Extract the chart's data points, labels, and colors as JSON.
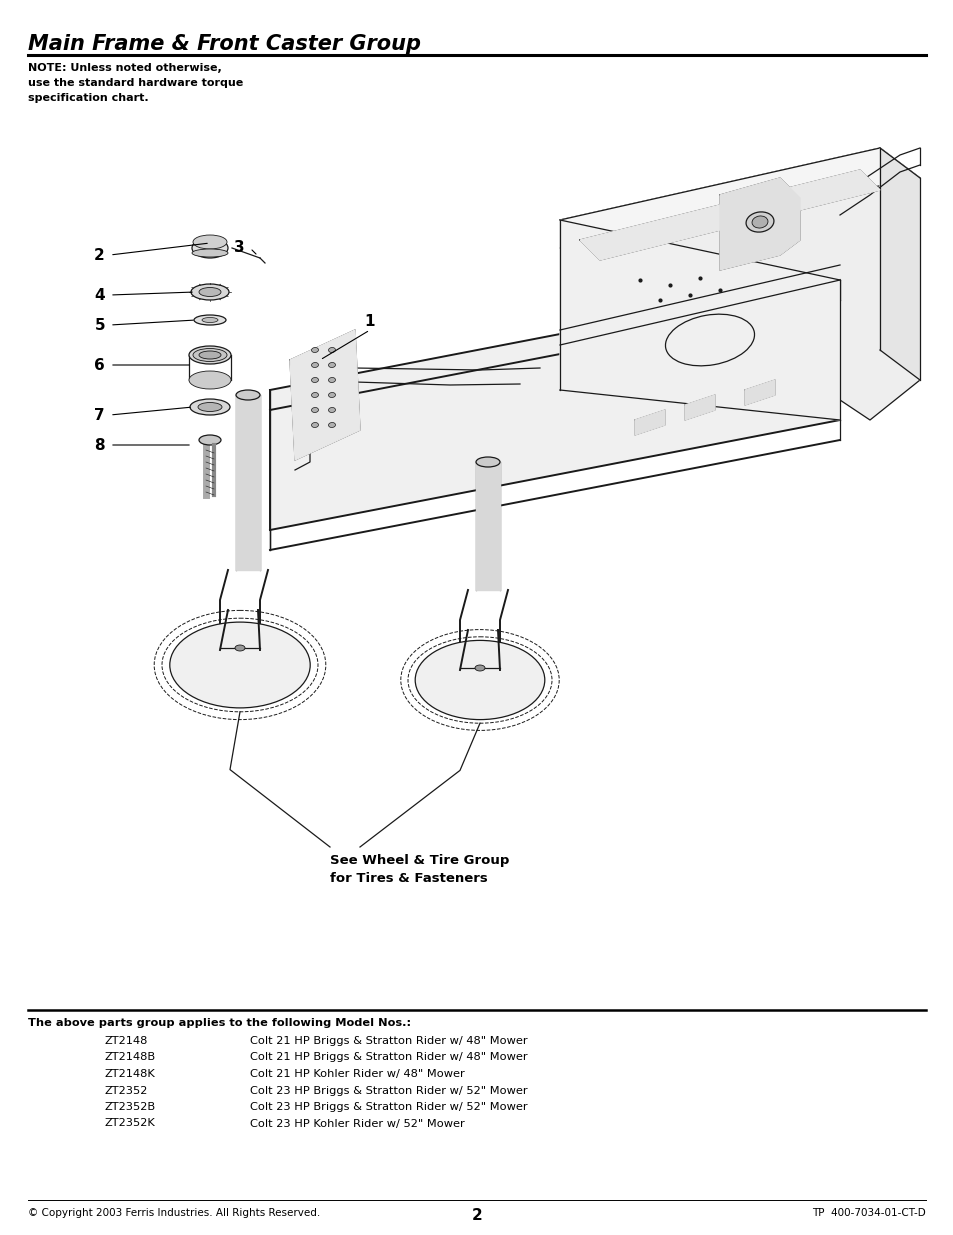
{
  "title": "Main Frame & Front Caster Group",
  "note_text": "NOTE: Unless noted otherwise,\nuse the standard hardware torque\nspecification chart.",
  "see_wheel_text": "See Wheel & Tire Group\nfor Tires & Fasteners",
  "parts_header": "The above parts group applies to the following Model Nos.:",
  "parts_table": [
    [
      "ZT2148",
      "Colt 21 HP Briggs & Stratton Rider w/ 48\" Mower"
    ],
    [
      "ZT2148B",
      "Colt 21 HP Briggs & Stratton Rider w/ 48\" Mower"
    ],
    [
      "ZT2148K",
      "Colt 21 HP Kohler Rider w/ 48\" Mower"
    ],
    [
      "ZT2352",
      "Colt 23 HP Briggs & Stratton Rider w/ 52\" Mower"
    ],
    [
      "ZT2352B",
      "Colt 23 HP Briggs & Stratton Rider w/ 52\" Mower"
    ],
    [
      "ZT2352K",
      "Colt 23 HP Kohler Rider w/ 52\" Mower"
    ]
  ],
  "footer_left": "© Copyright 2003 Ferris Industries. All Rights Reserved.",
  "footer_center": "2",
  "footer_right": "TP  400-7034-01-CT-D",
  "bg_color": "#ffffff",
  "text_color": "#000000",
  "title_fontsize": 15,
  "note_fontsize": 8.0,
  "table_fontsize": 8.2
}
